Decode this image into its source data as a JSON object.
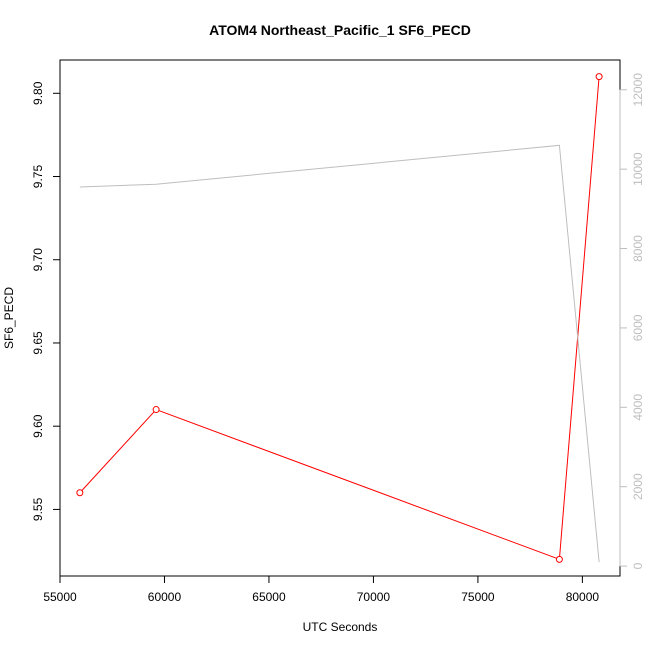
{
  "chart_data": {
    "type": "line",
    "title": "ATOM4 Northeast_Pacific_1 SF6_PECD",
    "xlabel": "UTC Seconds",
    "ylabel": "SF6_PECD",
    "y2label": "",
    "xlim": [
      55000,
      81800
    ],
    "ylim": [
      9.51,
      9.82
    ],
    "y2lim": [
      -250,
      12750
    ],
    "x_ticks": [
      55000,
      60000,
      65000,
      70000,
      75000,
      80000
    ],
    "x_tick_labels": [
      "55000",
      "60000",
      "65000",
      "70000",
      "75000",
      "80000"
    ],
    "y_ticks": [
      9.55,
      9.6,
      9.65,
      9.7,
      9.75,
      9.8
    ],
    "y_tick_labels": [
      "9.55",
      "9.60",
      "9.65",
      "9.70",
      "9.75",
      "9.80"
    ],
    "y2_ticks": [
      0,
      2000,
      4000,
      6000,
      8000,
      10000,
      12000
    ],
    "y2_tick_labels": [
      "0",
      "2000",
      "4000",
      "6000",
      "8000",
      "10000",
      "12000"
    ],
    "grid": false,
    "series": [
      {
        "axis": "left",
        "color": "#ff0000",
        "markers": "open-circle",
        "x": [
          55950,
          59600,
          78900,
          80800
        ],
        "y": [
          9.56,
          9.61,
          9.52,
          9.81
        ]
      },
      {
        "axis": "right",
        "color": "#bebebe",
        "markers": "none",
        "x": [
          55950,
          59600,
          78900,
          80800
        ],
        "y": [
          9550,
          9620,
          10600,
          100
        ]
      }
    ]
  }
}
